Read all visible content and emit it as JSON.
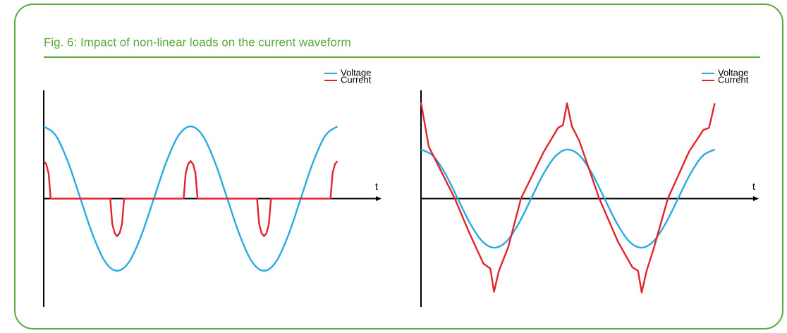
{
  "title": "Fig. 6: Impact of non-linear loads on the current waveform",
  "chart_data": [
    {
      "type": "line",
      "xlabel": "t",
      "xlim": [
        0,
        828
      ],
      "ylim": [
        -1.5,
        1.5
      ],
      "series": [
        {
          "name": "Voltage",
          "color": "#29abe2",
          "smooth": true,
          "x": [
            0,
            30,
            60,
            90,
            120,
            150,
            180,
            210,
            240,
            270,
            300,
            330,
            360,
            390,
            420,
            450,
            480,
            510,
            540,
            570,
            600,
            630,
            660,
            690,
            720
          ],
          "values": [
            1,
            0.87,
            0.5,
            0,
            -0.5,
            -0.87,
            -1,
            -0.87,
            -0.5,
            0,
            0.5,
            0.87,
            1,
            0.87,
            0.5,
            0,
            -0.5,
            -0.87,
            -1,
            -0.87,
            -0.5,
            0,
            0.5,
            0.87,
            1
          ]
        },
        {
          "name": "Current",
          "color": "#e0242b",
          "smooth": false,
          "x": [
            0,
            6,
            12,
            17,
            163,
            168,
            174,
            180,
            186,
            192,
            197,
            343,
            348,
            354,
            360,
            366,
            372,
            377,
            523,
            528,
            534,
            540,
            546,
            552,
            557,
            703,
            708,
            714,
            720
          ],
          "values": [
            0.52,
            0.48,
            0.35,
            0,
            0,
            -0.35,
            -0.48,
            -0.52,
            -0.48,
            -0.35,
            0,
            0,
            0.35,
            0.48,
            0.52,
            0.48,
            0.35,
            0,
            0,
            -0.35,
            -0.48,
            -0.52,
            -0.48,
            -0.35,
            0,
            0,
            0.35,
            0.48,
            0.52
          ]
        }
      ]
    },
    {
      "type": "line",
      "xlabel": "t",
      "xlim": [
        0,
        828
      ],
      "ylim": [
        -1.5,
        1.5
      ],
      "series": [
        {
          "name": "Voltage",
          "color": "#29abe2",
          "smooth": true,
          "x": [
            0,
            30,
            60,
            90,
            120,
            150,
            180,
            210,
            240,
            270,
            300,
            330,
            360,
            390,
            420,
            450,
            480,
            510,
            540,
            570,
            600,
            630,
            660,
            690,
            720
          ],
          "values": [
            0.68,
            0.59,
            0.34,
            0,
            -0.34,
            -0.59,
            -0.68,
            -0.59,
            -0.34,
            0,
            0.34,
            0.59,
            0.68,
            0.59,
            0.34,
            0,
            -0.34,
            -0.59,
            -0.68,
            -0.59,
            -0.34,
            0,
            0.34,
            0.59,
            0.68
          ]
        },
        {
          "name": "Current",
          "color": "#e0242b",
          "smooth": false,
          "x": [
            0,
            19,
            83,
            118,
            153,
            170,
            179,
            191,
            214,
            245,
            301,
            336,
            348,
            358,
            370,
            388,
            437,
            483,
            518,
            532,
            541,
            553,
            570,
            605,
            657,
            692,
            706,
            720
          ],
          "values": [
            1.33,
            0.72,
            0,
            -0.47,
            -0.9,
            -0.97,
            -1.29,
            -1.0,
            -0.67,
            0,
            0.65,
            0.98,
            1.02,
            1.32,
            1.0,
            0.8,
            0,
            -0.6,
            -0.95,
            -1.0,
            -1.3,
            -1.0,
            -0.7,
            0,
            0.65,
            0.95,
            0.98,
            1.32
          ]
        }
      ]
    }
  ]
}
